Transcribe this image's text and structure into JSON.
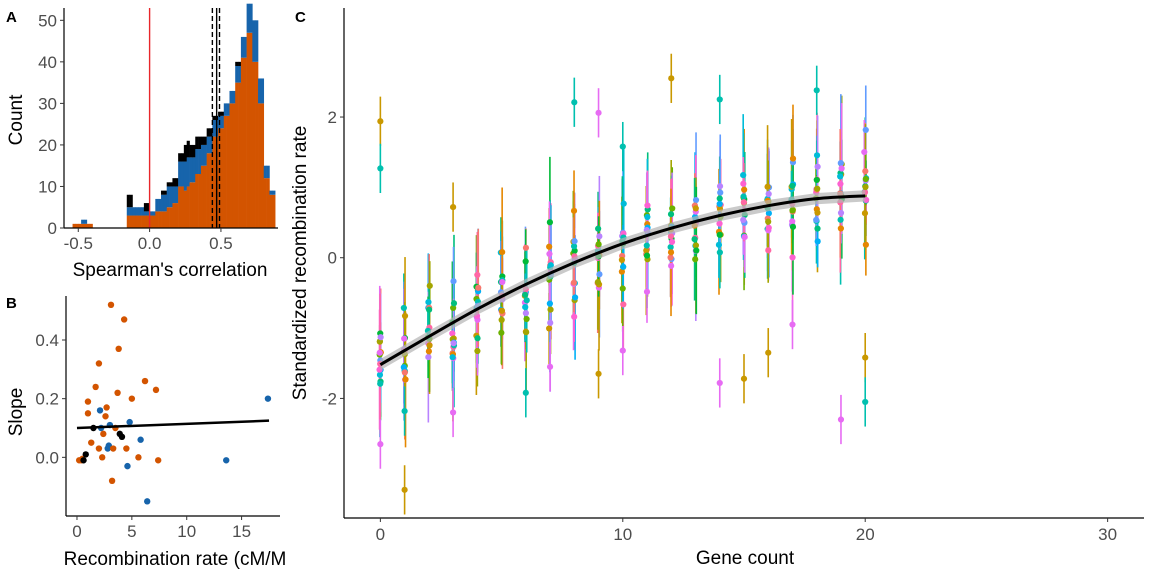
{
  "panels": {
    "a": "A",
    "b": "B",
    "c": "C"
  },
  "colors": {
    "black": "#000000",
    "blue": "#1764ab",
    "orange": "#d35400",
    "red": "#e8262a"
  },
  "chart_data": [
    {
      "panel": "A",
      "type": "bar",
      "subtype": "stacked-histogram",
      "xlabel": "Spearman's correlation",
      "ylabel": "Count",
      "xlim": [
        -0.6,
        0.9
      ],
      "ylim": [
        0,
        52
      ],
      "xticks": [
        "-0.5",
        "0.0",
        "0.5"
      ],
      "yticks": [
        "0",
        "10",
        "20",
        "30",
        "40",
        "50"
      ],
      "bin_starts": [
        -0.54,
        -0.52,
        -0.5,
        -0.48,
        -0.46,
        -0.44,
        -0.42,
        -0.4,
        -0.38,
        -0.36,
        -0.34,
        -0.32,
        -0.3,
        -0.28,
        -0.26,
        -0.24,
        -0.22,
        -0.2,
        -0.18,
        -0.16,
        -0.14,
        -0.12,
        -0.1,
        -0.08,
        -0.06,
        -0.04,
        -0.02,
        0.0,
        0.02,
        0.04,
        0.06,
        0.08,
        0.1,
        0.12,
        0.14,
        0.16,
        0.18,
        0.2,
        0.22,
        0.24,
        0.26,
        0.28,
        0.3,
        0.32,
        0.34,
        0.36,
        0.38,
        0.4,
        0.42,
        0.44,
        0.46,
        0.48,
        0.5,
        0.52,
        0.54,
        0.56,
        0.58,
        0.6,
        0.62,
        0.64,
        0.66,
        0.68,
        0.7,
        0.72,
        0.74,
        0.76,
        0.78,
        0.8,
        0.82,
        0.84,
        0.86
      ],
      "bin_width": 0.02,
      "series": [
        {
          "name": "",
          "color": "orange",
          "values": [
            1,
            1,
            1,
            1,
            1,
            1,
            1,
            0,
            0,
            0,
            0,
            0,
            0,
            0,
            0,
            0,
            0,
            0,
            0,
            3,
            3,
            3,
            3,
            3,
            3,
            3,
            3,
            3,
            3,
            4,
            4,
            4,
            4,
            5,
            5,
            6,
            6,
            10,
            10,
            9,
            10,
            11,
            11,
            13,
            13,
            15,
            15,
            18,
            18,
            22,
            22,
            24,
            24,
            27,
            27,
            30,
            30,
            35,
            35,
            41,
            41,
            47,
            47,
            40,
            40,
            30,
            30,
            12,
            12,
            8,
            8
          ]
        },
        {
          "name": "",
          "color": "blue",
          "values": [
            0,
            0,
            0,
            1,
            1,
            0,
            0,
            0,
            0,
            0,
            0,
            0,
            0,
            0,
            0,
            0,
            0,
            0,
            0,
            2,
            2,
            2,
            2,
            2,
            2,
            1,
            1,
            1,
            1,
            3,
            3,
            4,
            4,
            5,
            5,
            4,
            4,
            6,
            6,
            7,
            7,
            6,
            6,
            6,
            6,
            5,
            5,
            4,
            4,
            4,
            4,
            3,
            3,
            3,
            3,
            3,
            3,
            4,
            4,
            5,
            5,
            7,
            7,
            10,
            10,
            6,
            6,
            3,
            3,
            1,
            1
          ]
        },
        {
          "name": "",
          "color": "black",
          "values": [
            0,
            0,
            0,
            0,
            0,
            0,
            0,
            0,
            0,
            0,
            0,
            0,
            0,
            0,
            0,
            0,
            0,
            0,
            0,
            3,
            3,
            0,
            0,
            0,
            0,
            2,
            2,
            0,
            0,
            0,
            0,
            1,
            1,
            1,
            1,
            2,
            2,
            2,
            2,
            4,
            4,
            3,
            3,
            3,
            3,
            2,
            2,
            2,
            2,
            1,
            1,
            1,
            1,
            0,
            0,
            0,
            0,
            1,
            1,
            0,
            0,
            0,
            0,
            0,
            0,
            0,
            0,
            0,
            0,
            0,
            0
          ]
        }
      ],
      "vlines": [
        {
          "x": 0.0,
          "color": "red",
          "style": "solid"
        },
        {
          "x": 0.47,
          "color": "black",
          "style": "solid"
        },
        {
          "x": 0.44,
          "color": "black",
          "style": "dashed"
        },
        {
          "x": 0.49,
          "color": "black",
          "style": "dashed"
        }
      ]
    },
    {
      "panel": "B",
      "type": "scatter",
      "xlabel": "Recombination rate (cM/M",
      "ylabel": "Slope",
      "xlim": [
        -1,
        18.5
      ],
      "ylim": [
        -0.2,
        0.55
      ],
      "xticks": [
        "0",
        "5",
        "10",
        "15"
      ],
      "yticks": [
        "0.0",
        "0.2",
        "0.4"
      ],
      "points": [
        {
          "x": 0.2,
          "y": -0.01,
          "c": "orange"
        },
        {
          "x": 0.4,
          "y": -0.01,
          "c": "orange"
        },
        {
          "x": 0.5,
          "y": -0.005,
          "c": "orange"
        },
        {
          "x": 0.6,
          "y": -0.01,
          "c": "black"
        },
        {
          "x": 0.8,
          "y": 0.01,
          "c": "black"
        },
        {
          "x": 1.0,
          "y": 0.15,
          "c": "orange"
        },
        {
          "x": 1.0,
          "y": 0.19,
          "c": "orange"
        },
        {
          "x": 1.3,
          "y": 0.05,
          "c": "orange"
        },
        {
          "x": 1.5,
          "y": 0.1,
          "c": "black"
        },
        {
          "x": 1.7,
          "y": 0.24,
          "c": "orange"
        },
        {
          "x": 2.0,
          "y": 0.32,
          "c": "orange"
        },
        {
          "x": 2.0,
          "y": 0.03,
          "c": "orange"
        },
        {
          "x": 2.1,
          "y": 0.16,
          "c": "blue"
        },
        {
          "x": 2.2,
          "y": 0.1,
          "c": "blue"
        },
        {
          "x": 2.3,
          "y": 0.0,
          "c": "orange"
        },
        {
          "x": 2.4,
          "y": 0.08,
          "c": "orange"
        },
        {
          "x": 2.6,
          "y": 0.14,
          "c": "orange"
        },
        {
          "x": 2.7,
          "y": 0.17,
          "c": "orange"
        },
        {
          "x": 2.8,
          "y": 0.03,
          "c": "blue"
        },
        {
          "x": 2.9,
          "y": 0.04,
          "c": "blue"
        },
        {
          "x": 3.0,
          "y": 0.11,
          "c": "blue"
        },
        {
          "x": 3.1,
          "y": 0.52,
          "c": "orange"
        },
        {
          "x": 3.2,
          "y": -0.08,
          "c": "orange"
        },
        {
          "x": 3.3,
          "y": 0.03,
          "c": "orange"
        },
        {
          "x": 3.5,
          "y": 0.1,
          "c": "orange"
        },
        {
          "x": 3.7,
          "y": 0.22,
          "c": "orange"
        },
        {
          "x": 3.8,
          "y": 0.37,
          "c": "orange"
        },
        {
          "x": 3.9,
          "y": 0.08,
          "c": "black"
        },
        {
          "x": 4.1,
          "y": 0.07,
          "c": "black"
        },
        {
          "x": 4.3,
          "y": 0.47,
          "c": "orange"
        },
        {
          "x": 4.5,
          "y": 0.03,
          "c": "orange"
        },
        {
          "x": 4.6,
          "y": -0.03,
          "c": "blue"
        },
        {
          "x": 4.8,
          "y": 0.12,
          "c": "blue"
        },
        {
          "x": 5.0,
          "y": 0.2,
          "c": "orange"
        },
        {
          "x": 5.6,
          "y": 0.0,
          "c": "orange"
        },
        {
          "x": 5.8,
          "y": 0.06,
          "c": "blue"
        },
        {
          "x": 6.2,
          "y": 0.26,
          "c": "orange"
        },
        {
          "x": 6.4,
          "y": -0.15,
          "c": "blue"
        },
        {
          "x": 7.2,
          "y": 0.23,
          "c": "orange"
        },
        {
          "x": 7.4,
          "y": -0.01,
          "c": "orange"
        },
        {
          "x": 13.6,
          "y": -0.01,
          "c": "blue"
        },
        {
          "x": 17.4,
          "y": 0.2,
          "c": "blue"
        }
      ],
      "fit": {
        "x": [
          0,
          17.5
        ],
        "y": [
          0.1,
          0.125
        ]
      }
    },
    {
      "panel": "C",
      "type": "scatter",
      "subtype": "points-with-error-bars",
      "xlabel": "Gene count",
      "ylabel": "Standardized recombination rate",
      "xlim": [
        -1.5,
        31.5
      ],
      "ylim": [
        -3.7,
        3.55
      ],
      "xticks": [
        "0",
        "10",
        "20",
        "30"
      ],
      "yticks": [
        "-2",
        "0",
        "2"
      ],
      "palette": [
        "#f8766d",
        "#e58700",
        "#c99800",
        "#a3a500",
        "#6bb100",
        "#00ba38",
        "#00bf7d",
        "#00c0af",
        "#00bcd8",
        "#00b0f6",
        "#619cff",
        "#b983ff",
        "#e76bf3",
        "#fd61d1",
        "#ff67a4"
      ],
      "mean_by_gene_count": [
        -1.55,
        -1.35,
        -1.12,
        -0.93,
        -0.75,
        -0.57,
        -0.42,
        -0.27,
        -0.11,
        0.02,
        0.15,
        0.27,
        0.38,
        0.48,
        0.57,
        0.65,
        0.71,
        0.77,
        0.81,
        0.84,
        0.86
      ],
      "spread_by_gene_count": [
        0.7,
        0.75,
        0.7,
        0.75,
        0.8,
        0.8,
        0.75,
        0.8,
        0.75,
        0.7,
        0.75,
        0.75,
        0.7,
        0.75,
        0.7,
        0.75,
        0.8,
        0.8,
        0.8,
        0.75,
        0.75
      ],
      "extremes": [
        {
          "x": 0,
          "y": 1.94
        },
        {
          "x": 0,
          "y": 1.27
        },
        {
          "x": 0,
          "y": -2.65
        },
        {
          "x": 1,
          "y": -3.3
        },
        {
          "x": 1,
          "y": -2.18
        },
        {
          "x": 3,
          "y": -2.2
        },
        {
          "x": 3,
          "y": 0.72
        },
        {
          "x": 8,
          "y": 2.21
        },
        {
          "x": 9,
          "y": 2.06
        },
        {
          "x": 9,
          "y": -1.65
        },
        {
          "x": 10,
          "y": 1.58
        },
        {
          "x": 10,
          "y": -1.32
        },
        {
          "x": 12,
          "y": 2.55
        },
        {
          "x": 14,
          "y": 2.25
        },
        {
          "x": 14,
          "y": -1.78
        },
        {
          "x": 15,
          "y": -1.72
        },
        {
          "x": 18,
          "y": 2.38
        },
        {
          "x": 19,
          "y": -2.3
        },
        {
          "x": 20,
          "y": -1.42
        },
        {
          "x": 20,
          "y": -2.05
        },
        {
          "x": 17,
          "y": -0.95
        },
        {
          "x": 16,
          "y": -1.35
        },
        {
          "x": 6,
          "y": -1.92
        },
        {
          "x": 7,
          "y": -1.55
        }
      ],
      "fit": {
        "x": [
          0,
          2,
          4,
          6,
          8,
          10,
          12,
          14,
          16,
          18,
          20
        ],
        "y": [
          -1.52,
          -1.12,
          -0.73,
          -0.38,
          -0.07,
          0.2,
          0.42,
          0.6,
          0.74,
          0.84,
          0.88
        ]
      }
    }
  ]
}
